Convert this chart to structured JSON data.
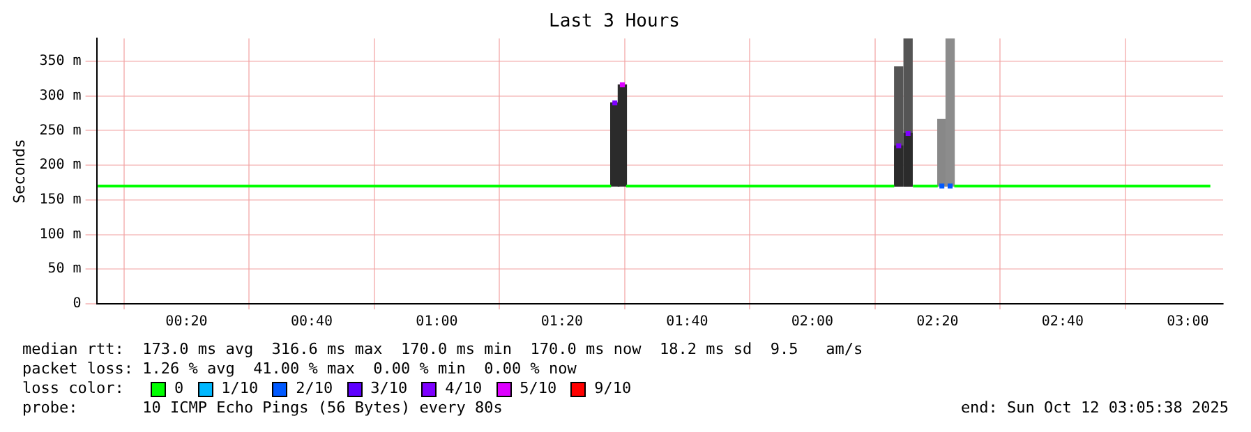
{
  "chart_data": {
    "type": "line",
    "title": "Last 3 Hours",
    "ylabel": "Seconds",
    "legend_title": "loss color:",
    "legend": "bottom",
    "grid": true,
    "marker": "square",
    "xlim": [
      0.094,
      3.094
    ],
    "xticks": [
      {
        "value": 0.3333,
        "label": "00:20"
      },
      {
        "value": 0.6667,
        "label": "00:40"
      },
      {
        "value": 1,
        "label": "01:00"
      },
      {
        "value": 1.3333,
        "label": "01:20"
      },
      {
        "value": 1.6667,
        "label": "01:40"
      },
      {
        "value": 2,
        "label": "02:00"
      },
      {
        "value": 2.3333,
        "label": "02:20"
      },
      {
        "value": 2.6667,
        "label": "02:40"
      },
      {
        "value": 3,
        "label": "03:00"
      }
    ],
    "ylim": [
      0,
      383
    ],
    "yticks": [
      {
        "value": 0,
        "label": "0"
      },
      {
        "value": 50,
        "label": "50 m"
      },
      {
        "value": 100,
        "label": "100 m"
      },
      {
        "value": 150,
        "label": "150 m"
      },
      {
        "value": 200,
        "label": "200 m"
      },
      {
        "value": 250,
        "label": "250 m"
      },
      {
        "value": 300,
        "label": "300 m"
      },
      {
        "value": 350,
        "label": "350 m"
      }
    ],
    "series": [
      {
        "type": "bar",
        "x": [
          2.23,
          2.255,
          2.345,
          2.367
        ],
        "base": [
          170,
          170,
          170,
          170
        ],
        "values": [
          172,
          213,
          96,
          213
        ],
        "colors": [
          "#555555",
          "#555555",
          "#888888",
          "#8c8c8c"
        ]
      },
      {
        "type": "bar",
        "x": [
          1.474,
          1.494,
          2.23,
          2.255
        ],
        "base": [
          170,
          170,
          170,
          170
        ],
        "values": [
          120,
          146,
          58,
          76
        ],
        "colors": [
          "#2b2b2b",
          "#2b2b2b",
          "#2b2b2b",
          "#2b2b2b"
        ]
      },
      {
        "name": "0",
        "color": "#00ff00",
        "marker": "none",
        "x": [
          0.097,
          1.464,
          1.465,
          1.504,
          2.218,
          2.22,
          2.268,
          2.334,
          2.335,
          2.378,
          3.06
        ],
        "values": [
          170,
          170,
          null,
          170,
          170,
          null,
          170,
          170,
          null,
          170,
          170
        ]
      },
      {
        "name": "1/10",
        "type": "scatter",
        "color": "#00b8ff"
      },
      {
        "name": "2/10",
        "type": "scatter",
        "color": "#0059ff",
        "x": [
          2.345,
          2.367
        ],
        "values": [
          170,
          170
        ]
      },
      {
        "name": "3/10",
        "type": "scatter",
        "color": "#5e00ff"
      },
      {
        "name": "4/10",
        "type": "scatter",
        "color": "#7e00ff",
        "x": [
          1.474,
          2.23,
          2.255
        ],
        "values": [
          290,
          228,
          246
        ]
      },
      {
        "name": "5/10",
        "type": "scatter",
        "color": "#dd00ff",
        "x": [
          1.494
        ],
        "values": [
          316
        ]
      },
      {
        "name": "9/10",
        "type": "scatter",
        "color": "#ff0000"
      }
    ],
    "annotations": [
      "median rtt:  173.0 ms avg  316.6 ms max  170.0 ms min  170.0 ms now  18.2 ms sd  9.5   am/s",
      "packet loss: 1.26 % avg  41.00 % max  0.00 % min  0.00 % now",
      "probe:       10 ICMP Echo Pings (56 Bytes) every 80s",
      "end: Sun Oct 12 03:05:38 2025"
    ]
  }
}
